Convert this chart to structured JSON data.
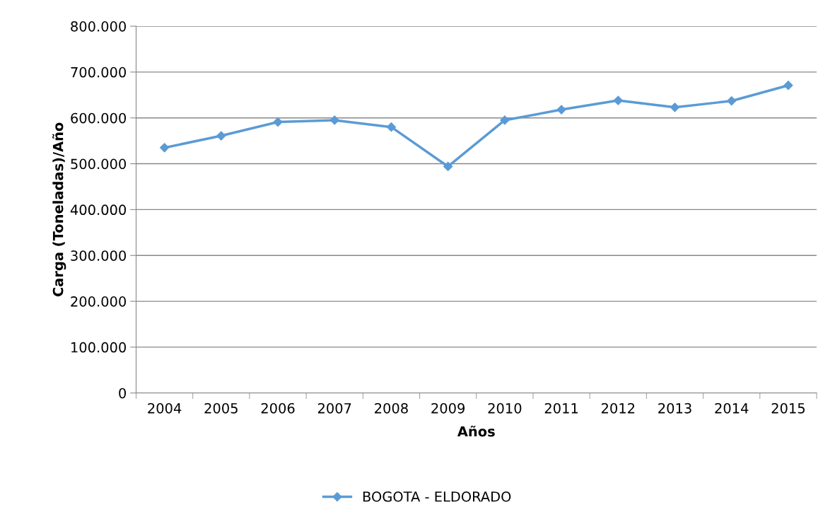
{
  "chart_data": {
    "type": "line",
    "xlabel": "Años",
    "ylabel": "Carga (Toneladas)/Año",
    "categories": [
      "2004",
      "2005",
      "2006",
      "2007",
      "2008",
      "2009",
      "2010",
      "2011",
      "2012",
      "2013",
      "2014",
      "2015"
    ],
    "series": [
      {
        "name": "BOGOTA - ELDORADO",
        "color": "#5b9bd5",
        "values": [
          535000,
          561000,
          591000,
          595000,
          580000,
          494000,
          595000,
          618000,
          638000,
          623000,
          637000,
          671000
        ]
      }
    ],
    "ylim": [
      0,
      800000
    ],
    "yticks": [
      0,
      {
        "value": 100000,
        "label": "100.000"
      },
      {
        "value": 200000,
        "label": "200.000"
      },
      {
        "value": 300000,
        "label": "300.000"
      },
      {
        "value": 400000,
        "label": "400.000"
      },
      {
        "value": 500000,
        "label": "500.000"
      },
      {
        "value": 600000,
        "label": "600.000"
      },
      {
        "value": 700000,
        "label": "700.000"
      },
      {
        "value": 800000,
        "label": "800.000"
      }
    ],
    "grid": "y",
    "legend": "bottom",
    "marker": "diamond",
    "line_style": "solid"
  }
}
